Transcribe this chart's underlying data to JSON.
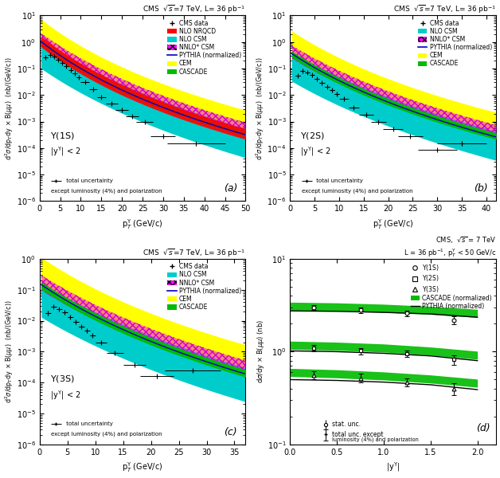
{
  "colors": {
    "NLO_NRQCD": "#FF0000",
    "NLO_CSM": "#00CCCC",
    "NNLO_CSM": "#FF00FF",
    "PYTHIA": "#0000BB",
    "CEM": "#FFFF00",
    "CASCADE": "#00BB00",
    "data": "black"
  },
  "ylabel_diff": "d$^{2}\\sigma$/dp$_{T}$dy $\\times$ B($\\mu\\mu$)  (nb/(GeV/c))",
  "ylabel_d": "d$\\sigma$/dy $\\times$ B($\\mu\\mu$) (nb)",
  "xlabel_pt": "p$_{T}^{\\Upsilon}$ (GeV/c)",
  "xlabel_y": "|y$^{\\Upsilon}$|",
  "panel_a": {
    "label": "(a)",
    "state": "$\\Upsilon$(1S)",
    "xlim": [
      0,
      50
    ],
    "ylim_log": [
      -6,
      1
    ],
    "xticks": [
      0,
      5,
      10,
      15,
      20,
      25,
      30,
      35,
      40,
      45,
      50
    ],
    "has_NRQCD": true
  },
  "panel_b": {
    "label": "(b)",
    "state": "$\\Upsilon$(2S)",
    "xlim": [
      0,
      42
    ],
    "ylim_log": [
      -6,
      1
    ],
    "xticks": [
      0,
      5,
      10,
      15,
      20,
      25,
      30,
      35,
      40
    ],
    "has_NRQCD": false
  },
  "panel_c": {
    "label": "(c)",
    "state": "$\\Upsilon$(3S)",
    "xlim": [
      0,
      37
    ],
    "ylim_log": [
      -6,
      0
    ],
    "xticks": [
      0,
      5,
      10,
      15,
      20,
      25,
      30,
      35
    ],
    "has_NRQCD": false
  },
  "panel_d": {
    "label": "(d)",
    "xlim": [
      0,
      2.2
    ],
    "ylim": [
      0.1,
      10
    ],
    "xticks": [
      0,
      0.5,
      1.0,
      1.5,
      2.0
    ]
  }
}
